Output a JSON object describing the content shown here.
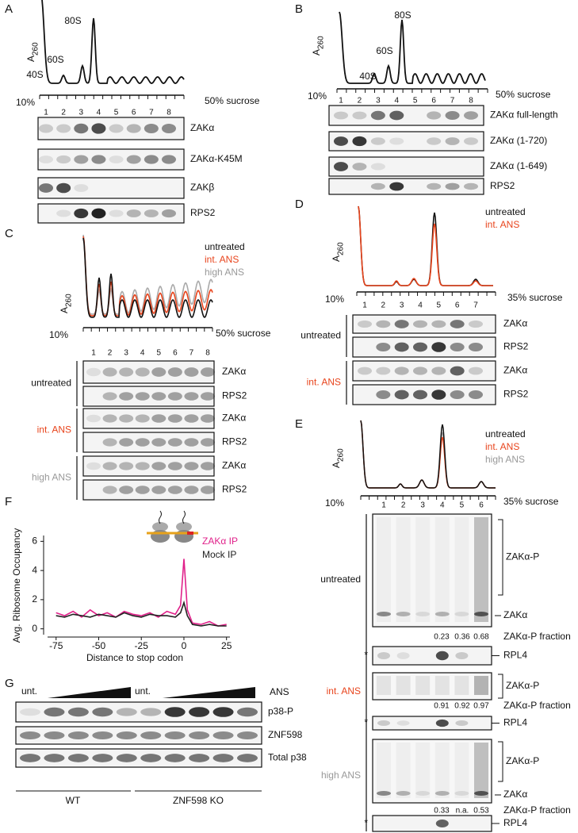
{
  "A": {
    "label": "A",
    "axis_label": "A",
    "axis_sub": "260",
    "peaks": [
      "40S",
      "60S",
      "80S"
    ],
    "gradient": [
      "10%",
      "50% sucrose"
    ],
    "fractions": [
      "1",
      "2",
      "3",
      "4",
      "5",
      "6",
      "7",
      "8"
    ],
    "blots": [
      "ZAKα",
      "ZAKα-K45M",
      "ZAKβ",
      "RPS2"
    ]
  },
  "B": {
    "label": "B",
    "axis_label": "A",
    "axis_sub": "260",
    "peaks": [
      "40S",
      "60S",
      "80S"
    ],
    "gradient": [
      "10%",
      "50% sucrose"
    ],
    "fractions": [
      "1",
      "2",
      "3",
      "4",
      "5",
      "6",
      "7",
      "8"
    ],
    "blots": [
      "ZAKα full-length",
      "ZAKα (1-720)",
      "ZAKα (1-649)",
      "RPS2"
    ]
  },
  "C": {
    "label": "C",
    "axis_label": "A",
    "axis_sub": "260",
    "legend": [
      "untreated",
      "int. ANS",
      "high ANS"
    ],
    "gradient": [
      "10%",
      "50% sucrose"
    ],
    "fractions": [
      "1",
      "2",
      "3",
      "4",
      "5",
      "6",
      "7",
      "8"
    ],
    "groups": [
      {
        "name": "untreated",
        "blots": [
          "ZAKα",
          "RPS2"
        ]
      },
      {
        "name": "int. ANS",
        "blots": [
          "ZAKα",
          "RPS2"
        ]
      },
      {
        "name": "high ANS",
        "blots": [
          "ZAKα",
          "RPS2"
        ]
      }
    ]
  },
  "D": {
    "label": "D",
    "axis_label": "A",
    "axis_sub": "260",
    "legend": [
      "untreated",
      "int. ANS"
    ],
    "gradient": [
      "10%",
      "35% sucrose"
    ],
    "fractions": [
      "1",
      "2",
      "3",
      "4",
      "5",
      "6",
      "7"
    ],
    "groups": [
      {
        "name": "untreated",
        "blots": [
          "ZAKα",
          "RPS2"
        ]
      },
      {
        "name": "int. ANS",
        "blots": [
          "ZAKα",
          "RPS2"
        ]
      }
    ]
  },
  "E": {
    "label": "E",
    "axis_label": "A",
    "axis_sub": "260",
    "legend": [
      "untreated",
      "int. ANS",
      "high ANS"
    ],
    "gradient": [
      "10%",
      "35% sucrose"
    ],
    "fractions": [
      "1",
      "2",
      "3",
      "4",
      "5",
      "6"
    ],
    "groups": [
      {
        "name": "untreated",
        "phospho": "ZAKα-P",
        "base": "ZAKα",
        "fraction_label": "ZAKα-P fraction",
        "fraction_values": [
          "0.23",
          "0.36",
          "0.68"
        ],
        "marker": "*",
        "loading": "RPL4"
      },
      {
        "name": "int. ANS",
        "phospho": "ZAKα-P",
        "fraction_label": "ZAKα-P fraction",
        "fraction_values": [
          "0.91",
          "0.92",
          "0.97"
        ],
        "marker": "*",
        "loading": "RPL4"
      },
      {
        "name": "high ANS",
        "phospho": "ZAKα-P",
        "base": "ZAKα",
        "fraction_label": "ZAKα-P fraction",
        "fraction_values": [
          "0.33",
          "n.a.",
          "0.53"
        ],
        "marker": "*",
        "loading": "RPL4"
      }
    ]
  },
  "F": {
    "label": "F",
    "y_label": "Avg. Ribosome Occupancy",
    "x_label": "Distance to stop codon",
    "x": [
      -75,
      -70,
      -65,
      -60,
      -55,
      -50,
      -45,
      -40,
      -35,
      -30,
      -25,
      -20,
      -15,
      -10,
      -5,
      -2,
      0,
      2,
      5,
      10,
      15,
      20,
      25
    ],
    "series": [
      {
        "name": "ZAKα IP",
        "color": "#e0218a",
        "values": [
          1.1,
          0.9,
          1.2,
          0.8,
          1.3,
          0.9,
          1.1,
          0.8,
          1.2,
          1.0,
          0.9,
          1.1,
          0.8,
          1.2,
          1.0,
          1.6,
          4.8,
          1.3,
          0.4,
          0.3,
          0.5,
          0.2,
          0.3
        ]
      },
      {
        "name": "Mock IP",
        "color": "#222222",
        "values": [
          0.9,
          0.8,
          1.0,
          0.9,
          0.8,
          1.0,
          0.9,
          0.8,
          1.1,
          0.9,
          0.8,
          1.0,
          0.9,
          0.9,
          0.8,
          1.1,
          1.8,
          0.9,
          0.3,
          0.2,
          0.3,
          0.2,
          0.2
        ]
      }
    ],
    "xlim": [
      -80,
      27
    ],
    "ylim": [
      -0.4,
      6.4
    ],
    "xticks": [
      -75,
      -50,
      -25,
      0,
      25
    ],
    "yticks": [
      0,
      2,
      4,
      6
    ]
  },
  "G": {
    "label": "G",
    "untreated": [
      "unt.",
      "unt."
    ],
    "treatment": "ANS",
    "blots": [
      "p38-P",
      "ZNF598",
      "Total p38"
    ],
    "genotypes": [
      "WT",
      "ZNF598 KO"
    ]
  }
}
